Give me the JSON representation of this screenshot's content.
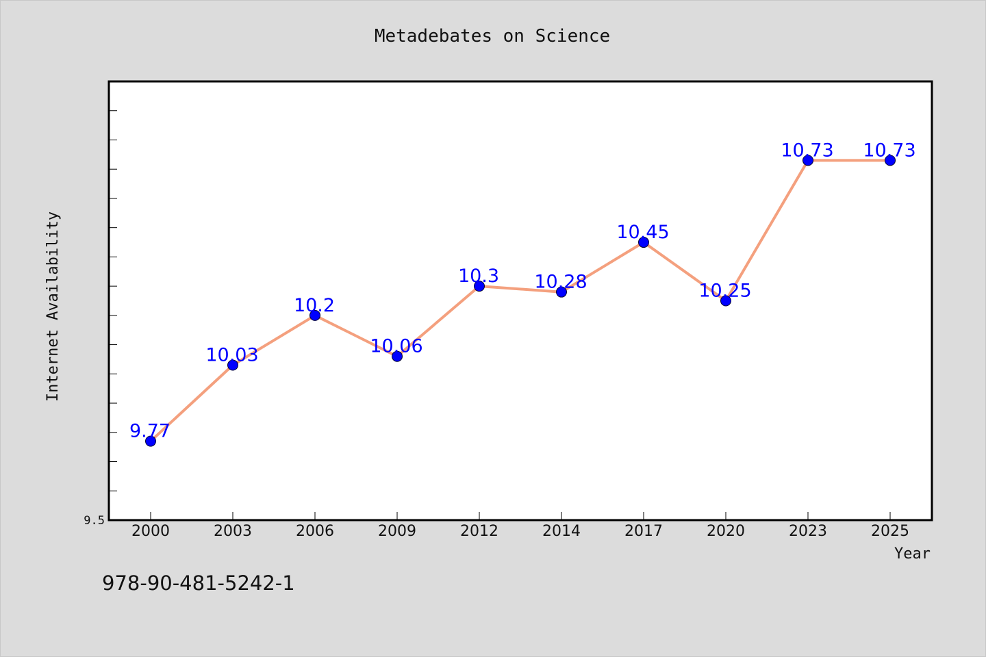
{
  "chart_data": {
    "type": "line",
    "title": "Metadebates on Science",
    "xlabel": "Year",
    "ylabel": "Internet Availability",
    "categories": [
      "2000",
      "2003",
      "2006",
      "2009",
      "2012",
      "2014",
      "2017",
      "2020",
      "2023",
      "2025"
    ],
    "series": [
      {
        "values": [
          9.77,
          10.03,
          10.2,
          10.06,
          10.3,
          10.28,
          10.45,
          10.25,
          10.73,
          10.73
        ],
        "labels": [
          "9.77",
          "10.03",
          "10.2",
          "10.06",
          "10.3",
          "10.28",
          "10.45",
          "10.25",
          "10.73",
          "10.73"
        ]
      }
    ],
    "ylim": [
      9.5,
      11.0
    ],
    "yticks_labeled": [
      "9.5"
    ],
    "grid": false,
    "line_color": "#f4a07e",
    "marker_color": "#0000ff",
    "label_color": "#0000ff"
  },
  "footer": {
    "isbn": "978-90-481-5242-1"
  }
}
